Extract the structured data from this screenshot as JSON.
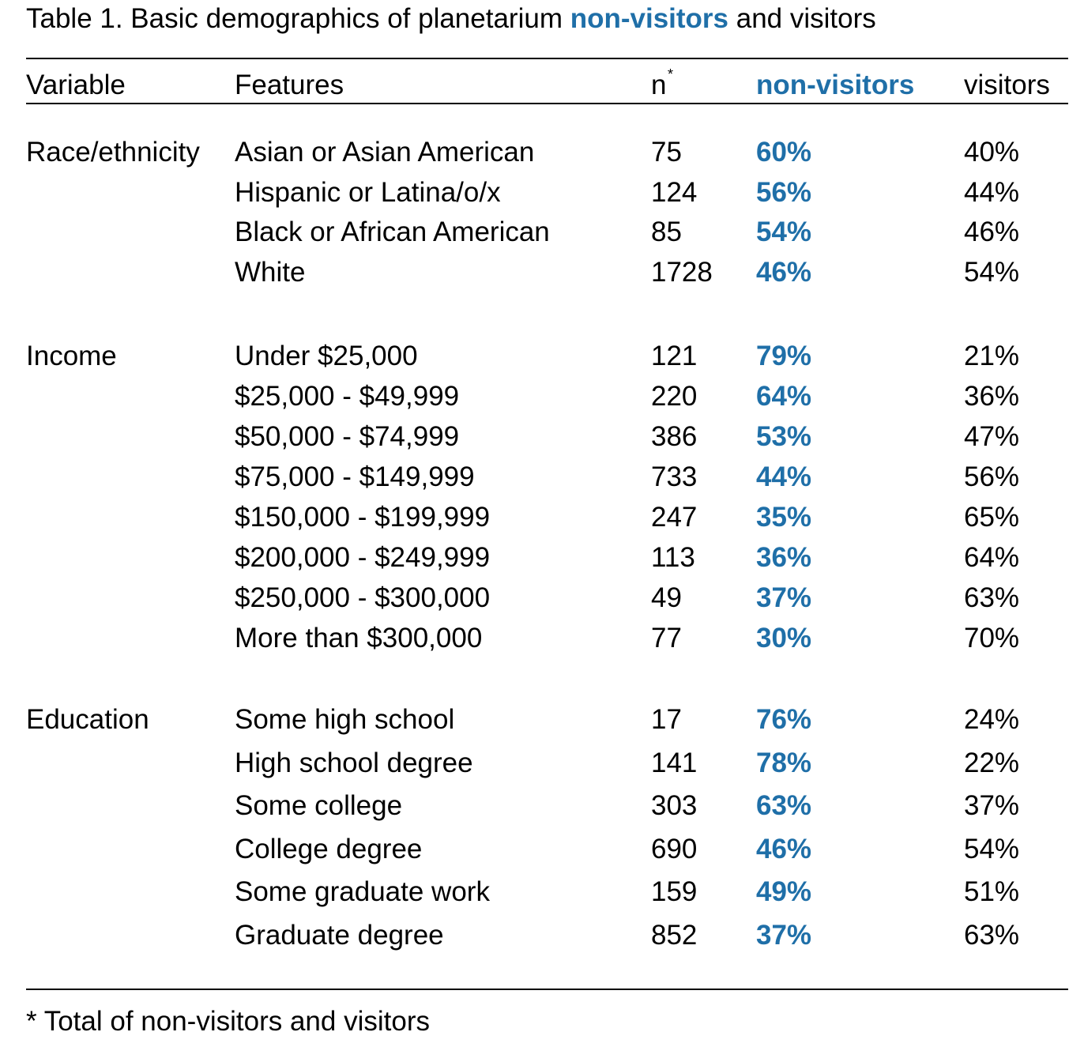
{
  "title": {
    "prefix": "Table 1. Basic demographics of planetarium ",
    "highlight": "non-visitors",
    "suffix": " and visitors"
  },
  "colors": {
    "accent": "#1f6fa8",
    "text": "#000000",
    "rules": "#000000"
  },
  "table": {
    "headers": {
      "variable": "Variable",
      "features": "Features",
      "n": "n",
      "n_marker": "*",
      "non_visitors": "non-visitors",
      "visitors": "visitors"
    },
    "groups": [
      {
        "variable": "Race/ethnicity",
        "rows": [
          {
            "feature": "Asian or Asian American",
            "n": "75",
            "non_visitors": "60%",
            "visitors": "40%"
          },
          {
            "feature": "Hispanic or Latina/o/x",
            "n": "124",
            "non_visitors": "56%",
            "visitors": "44%"
          },
          {
            "feature": "Black or African American",
            "n": "85",
            "non_visitors": "54%",
            "visitors": "46%"
          },
          {
            "feature": "White",
            "n": "1728",
            "non_visitors": "46%",
            "visitors": "54%"
          }
        ]
      },
      {
        "variable": "Income",
        "rows": [
          {
            "feature": "Under $25,000",
            "n": "121",
            "non_visitors": "79%",
            "visitors": "21%"
          },
          {
            "feature": "$25,000 - $49,999",
            "n": "220",
            "non_visitors": "64%",
            "visitors": "36%"
          },
          {
            "feature": "$50,000 - $74,999",
            "n": "386",
            "non_visitors": "53%",
            "visitors": "47%"
          },
          {
            "feature": "$75,000 - $149,999",
            "n": "733",
            "non_visitors": "44%",
            "visitors": "56%"
          },
          {
            "feature": "$150,000 - $199,999",
            "n": "247",
            "non_visitors": "35%",
            "visitors": "65%"
          },
          {
            "feature": "$200,000 - $249,999",
            "n": "113",
            "non_visitors": "36%",
            "visitors": "64%"
          },
          {
            "feature": "$250,000 - $300,000",
            "n": "49",
            "non_visitors": "37%",
            "visitors": "63%"
          },
          {
            "feature": "More than $300,000",
            "n": "77",
            "non_visitors": "30%",
            "visitors": "70%"
          }
        ]
      },
      {
        "variable": "Education",
        "rows": [
          {
            "feature": "Some high school",
            "n": "17",
            "non_visitors": "76%",
            "visitors": "24%"
          },
          {
            "feature": "High school degree",
            "n": "141",
            "non_visitors": "78%",
            "visitors": "22%"
          },
          {
            "feature": "Some college",
            "n": "303",
            "non_visitors": "63%",
            "visitors": "37%"
          },
          {
            "feature": "College degree",
            "n": "690",
            "non_visitors": "46%",
            "visitors": "54%"
          },
          {
            "feature": "Some graduate work",
            "n": "159",
            "non_visitors": "49%",
            "visitors": "51%"
          },
          {
            "feature": "Graduate degree",
            "n": "852",
            "non_visitors": "37%",
            "visitors": "63%"
          }
        ]
      }
    ]
  },
  "footnote": "* Total of non-visitors and visitors"
}
